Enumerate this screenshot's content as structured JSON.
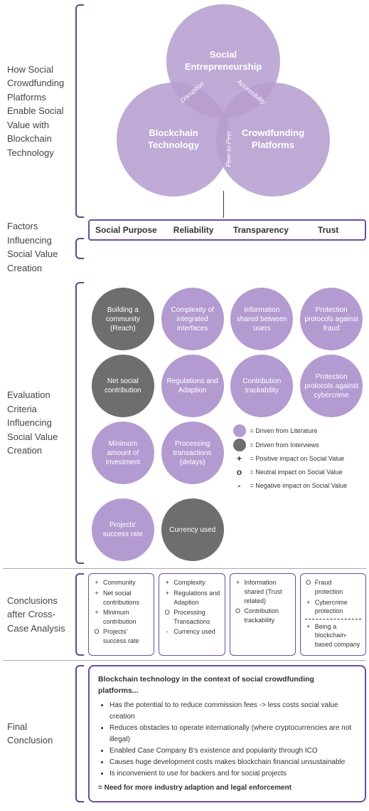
{
  "colors": {
    "literature": "#b39bd1",
    "interview": "#6e6e6e",
    "border": "#6a4fa0",
    "venn": "#b79ed0"
  },
  "sideLabels": {
    "venn": "How Social Crowdfunding Platforms Enable Social Value with Blockchain Technology",
    "factors": "Factors Influencing Social Value Creation",
    "eval": "Evaluation Criteria Influencing Social Value Creation",
    "conc": "Conclusions after Cross-Case Analysis",
    "final": "Final Conclusion"
  },
  "venn": {
    "top": "Social Entrepreneurship",
    "left": "Blockchain Technology",
    "right": "Crowdfunding Platforms",
    "overlapTopLeft": "Disruption",
    "overlapTopRight": "Accessibility",
    "overlapBottom": "Peer-to-Peer"
  },
  "factors": [
    "Social Purpose",
    "Reliability",
    "Transparency",
    "Trust"
  ],
  "eval": [
    [
      {
        "label": "Building a community (Reach)",
        "type": "intv"
      },
      {
        "label": "Complexity of integrated interfaces",
        "type": "lit"
      },
      {
        "label": "Information shared between users",
        "type": "lit"
      },
      {
        "label": "Protection protocols against fraud",
        "type": "lit"
      }
    ],
    [
      {
        "label": "Net social contribution",
        "type": "intv"
      },
      {
        "label": "Regulations and Adaption",
        "type": "lit"
      },
      {
        "label": "Contribution trackability",
        "type": "lit"
      },
      {
        "label": "Protection protocols against cybercrime",
        "type": "lit"
      }
    ],
    [
      {
        "label": "Minimum amount of investment",
        "type": "lit"
      },
      {
        "label": "Processing transactions (delays)",
        "type": "lit"
      },
      null,
      null
    ],
    [
      {
        "label": "Projects' success rate",
        "type": "lit"
      },
      {
        "label": "Currency used",
        "type": "intv"
      },
      null,
      null
    ]
  ],
  "legend": {
    "lit": "= Driven from Literature",
    "intv": "= Driven from Interviews",
    "pos": "= Positive impact on Social Value",
    "neu": "= Neutral impact on Social Value",
    "neg": "= Negative impact on Social Value"
  },
  "conclusions": [
    [
      {
        "sym": "+",
        "text": "Community"
      },
      {
        "sym": "+",
        "text": "Net social contributions"
      },
      {
        "sym": "+",
        "text": "Minimum contribution"
      },
      {
        "sym": "O",
        "text": "Projects' success rate"
      }
    ],
    [
      {
        "sym": "+",
        "text": "Complexity"
      },
      {
        "sym": "+",
        "text": "Regulations and Adaption"
      },
      {
        "sym": "O",
        "text": "Processing Transactions"
      },
      {
        "sym": "-",
        "text": "Currency used"
      }
    ],
    [
      {
        "sym": "+",
        "text": "Information shared (Trust related)"
      },
      {
        "sym": "O",
        "text": "Contribution trackability"
      }
    ],
    [
      {
        "sym": "O",
        "text": "Fraud protection"
      },
      {
        "sym": "+",
        "text": "Cybercrime protection"
      },
      {
        "divider": true
      },
      {
        "sym": "+",
        "text": "Being a blockchain-based company"
      }
    ]
  ],
  "final": {
    "title": "Blockchain technology in the context of social crowdfunding platforms...",
    "bullets": [
      "Has the potential to to reduce commission fees -> less costs social value creation",
      "Reduces obstacles to operate internationally (where cryptocurrencies are not illegal)",
      "Enabled Case Company B's existence and popularity through ICO",
      "Causes huge development costs makes blockchain financial unsustainable",
      "Is inconvenient to use for backers and for social projects"
    ],
    "need": "= Need for more industry adaption and legal enforcement"
  }
}
